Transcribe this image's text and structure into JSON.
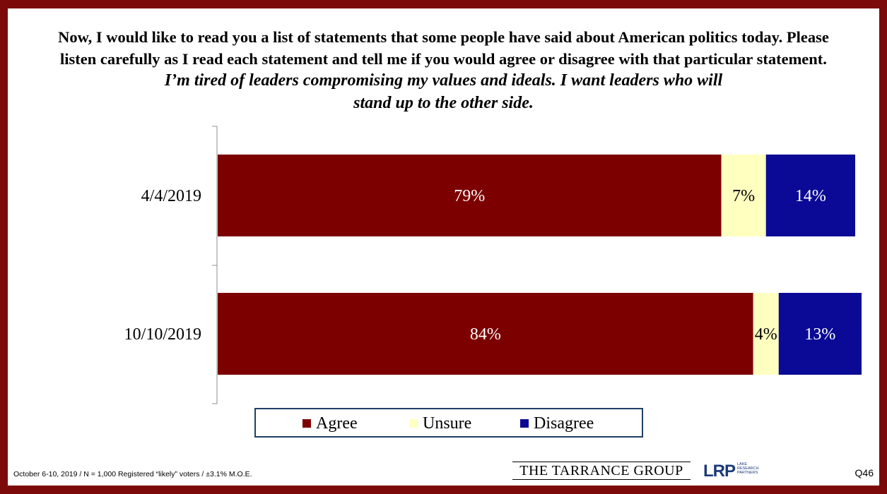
{
  "title": {
    "line1": "Now, I would like to read you a list of statements that some people have said about American politics today.  Please",
    "line2": "listen carefully as I read each statement and tell me if you would agree or disagree with that particular statement.",
    "line3": "I’m tired of leaders compromising my values and ideals. I want leaders who will",
    "line4": "stand up to the other side."
  },
  "chart_data": {
    "type": "bar",
    "orientation": "horizontal",
    "stacked": true,
    "categories": [
      "4/4/2019",
      "10/10/2019"
    ],
    "series": [
      {
        "name": "Agree",
        "values": [
          79,
          84
        ],
        "labels": [
          "79%",
          "84%"
        ],
        "color": "#7d0000",
        "label_color": "#ffffff"
      },
      {
        "name": "Unsure",
        "values": [
          7,
          4
        ],
        "labels": [
          "7%",
          "4%"
        ],
        "color": "#ffffc0",
        "label_color": "#000000"
      },
      {
        "name": "Disagree",
        "values": [
          14,
          13
        ],
        "labels": [
          "14%",
          "13%"
        ],
        "color": "#0a0a96",
        "label_color": "#ffffff"
      }
    ],
    "xlim": [
      0,
      100
    ],
    "grid": false,
    "legend_position": "bottom"
  },
  "legend": {
    "items": [
      {
        "label": "Agree",
        "color": "#7d0000"
      },
      {
        "label": "Unsure",
        "color": "#ffffc0"
      },
      {
        "label": "Disagree",
        "color": "#0a0a96"
      }
    ]
  },
  "footer": {
    "note": "October 6-10, 2019 / N = 1,000 Registered “likely” voters / ±3.1% M.O.E.",
    "tarrance": "THE TARRANCE GROUP",
    "lrp": "LRP",
    "lrp_sub": "LAKE RESEARCH PARTNERS",
    "question": "Q46"
  },
  "colors": {
    "frame": "#7d0a0a",
    "legend_border": "#1f3f66"
  }
}
